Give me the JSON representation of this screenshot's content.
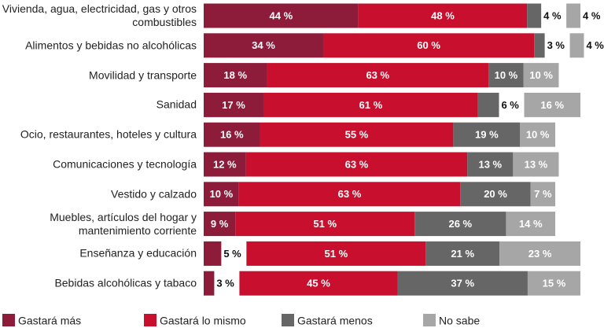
{
  "chart_data": {
    "type": "stacked-bar-horizontal",
    "categories": [
      "Vivienda, agua, electricidad, gas y otros combustibles",
      "Alimentos y bebidas no alcohólicas",
      "Movilidad y transporte",
      "Sanidad",
      "Ocio, restaurantes, hoteles y cultura",
      "Comunicaciones y tecnología",
      "Vestido y calzado",
      "Muebles, artículos del hogar y mantenimiento corriente",
      "Enseñanza y educación",
      "Bebidas alcohólicas y tabaco"
    ],
    "series": [
      {
        "name": "Gastará más",
        "color": "#8c1c3a",
        "values": [
          44,
          34,
          18,
          17,
          16,
          12,
          10,
          9,
          5,
          3
        ],
        "value_labels": [
          "44 %",
          "34 %",
          "18 %",
          "17 %",
          "16 %",
          "12 %",
          "10 %",
          "9 %",
          "5 %",
          "3 %"
        ]
      },
      {
        "name": "Gastará lo mismo",
        "color": "#c8102e",
        "values": [
          48,
          60,
          63,
          61,
          55,
          63,
          63,
          51,
          51,
          45
        ],
        "value_labels": [
          "48 %",
          "60 %",
          "63 %",
          "61 %",
          "55 %",
          "63 %",
          "63 %",
          "51 %",
          "51 %",
          "45 %"
        ]
      },
      {
        "name": "Gastará menos",
        "color": "#666666",
        "values": [
          4,
          3,
          10,
          6,
          19,
          13,
          20,
          26,
          21,
          37
        ],
        "value_labels": [
          "4 %",
          "3 %",
          "10 %",
          "6 %",
          "19 %",
          "13 %",
          "20 %",
          "26 %",
          "21 %",
          "37 %"
        ]
      },
      {
        "name": "No sabe",
        "color": "#a6a6a6",
        "values": [
          4,
          4,
          10,
          16,
          10,
          13,
          7,
          14,
          23,
          15
        ],
        "value_labels": [
          "4 %",
          "4 %",
          "10 %",
          "16 %",
          "10 %",
          "13 %",
          "7 %",
          "14 %",
          "23 %",
          "15 %"
        ]
      }
    ]
  }
}
